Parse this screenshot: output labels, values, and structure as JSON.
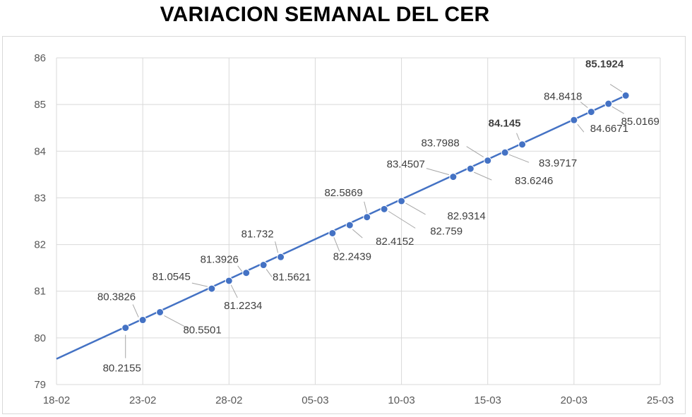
{
  "chart_data": {
    "type": "line",
    "title": "VARIACION SEMANAL DEL CER",
    "xlabel": "",
    "ylabel": "",
    "x_range": [
      "2022-02-18",
      "2022-03-25"
    ],
    "ylim": [
      79,
      86
    ],
    "y_ticks": [
      79,
      80,
      81,
      82,
      83,
      84,
      85,
      86
    ],
    "x_ticks": [
      {
        "date": "2022-02-18",
        "label": "18-02"
      },
      {
        "date": "2022-02-23",
        "label": "23-02"
      },
      {
        "date": "2022-02-28",
        "label": "28-02"
      },
      {
        "date": "2022-03-05",
        "label": "05-03"
      },
      {
        "date": "2022-03-10",
        "label": "10-03"
      },
      {
        "date": "2022-03-15",
        "label": "15-03"
      },
      {
        "date": "2022-03-20",
        "label": "20-03"
      },
      {
        "date": "2022-03-25",
        "label": "25-03"
      }
    ],
    "grid": true,
    "trendline": {
      "from": [
        "2022-02-18",
        79.55
      ],
      "to": [
        "2022-03-23",
        85.1924
      ]
    },
    "series": [
      {
        "color": "#4472c4",
        "points": [
          {
            "x": "2022-02-22",
            "y": 80.2155,
            "label": "80.2155"
          },
          {
            "x": "2022-02-23",
            "y": 80.3826,
            "label": "80.3826"
          },
          {
            "x": "2022-02-24",
            "y": 80.5501,
            "label": "80.5501"
          },
          {
            "x": "2022-02-27",
            "y": 81.0545,
            "label": "81.0545"
          },
          {
            "x": "2022-02-28",
            "y": 81.2234,
            "label": "81.2234"
          },
          {
            "x": "2022-03-01",
            "y": 81.3926,
            "label": "81.3926"
          },
          {
            "x": "2022-03-02",
            "y": 81.5621,
            "label": "81.5621"
          },
          {
            "x": "2022-03-03",
            "y": 81.732,
            "label": "81.732"
          },
          {
            "x": "2022-03-06",
            "y": 82.2439,
            "label": "82.2439"
          },
          {
            "x": "2022-03-07",
            "y": 82.4152,
            "label": "82.4152"
          },
          {
            "x": "2022-03-08",
            "y": 82.5869,
            "label": "82.5869"
          },
          {
            "x": "2022-03-09",
            "y": 82.759,
            "label": "82.759"
          },
          {
            "x": "2022-03-10",
            "y": 82.9314,
            "label": "82.9314",
            "emphasis": "medium"
          },
          {
            "x": "2022-03-13",
            "y": 83.4507,
            "label": "83.4507"
          },
          {
            "x": "2022-03-14",
            "y": 83.6246,
            "label": "83.6246"
          },
          {
            "x": "2022-03-15",
            "y": 83.7988,
            "label": "83.7988"
          },
          {
            "x": "2022-03-16",
            "y": 83.9717,
            "label": "83.9717"
          },
          {
            "x": "2022-03-17",
            "y": 84.145,
            "label": "84.145",
            "emphasis": "bold"
          },
          {
            "x": "2022-03-20",
            "y": 84.6671,
            "label": "84.6671"
          },
          {
            "x": "2022-03-21",
            "y": 84.8418,
            "label": "84.8418"
          },
          {
            "x": "2022-03-22",
            "y": 85.0169,
            "label": "85.0169"
          },
          {
            "x": "2022-03-23",
            "y": 85.1924,
            "label": "85.1924",
            "emphasis": "large"
          }
        ]
      }
    ]
  }
}
